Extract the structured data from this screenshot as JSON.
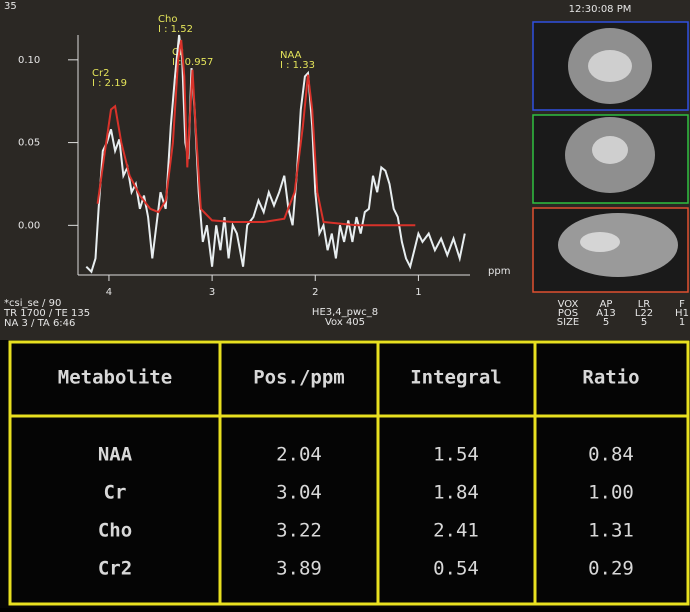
{
  "screen": {
    "clock": "12:30:08 PM",
    "corner": "35",
    "sequence": [
      "*csi_se / 90",
      "TR 1700 / TE 135",
      "NA 3 / TA 6:46"
    ],
    "voxel": [
      "HE3,4_pwc_8",
      "Vox 405"
    ],
    "geometry": [
      [
        "VOX",
        "POS",
        "SIZE"
      ],
      [
        "AP",
        "A13",
        "5"
      ],
      [
        "LR",
        "L22",
        "5"
      ],
      [
        "F",
        "H1",
        "1"
      ]
    ]
  },
  "chart_data": {
    "type": "line",
    "x_label": "ppm",
    "xlim": [
      4.3,
      0.5
    ],
    "ylim": [
      -0.03,
      0.115
    ],
    "xticks": [
      4,
      3,
      2,
      1
    ],
    "yticks": [
      {
        "value": 0.1,
        "label": "0.10"
      },
      {
        "value": 0.05,
        "label": "0.05"
      },
      {
        "value": 0,
        "label": "0.00"
      }
    ],
    "annotations": [
      {
        "label": "Cr2",
        "integral": "I : 2.19"
      },
      {
        "label": "Cho",
        "integral": "I : 1.52"
      },
      {
        "label": "Cr",
        "integral": "I : 0.957"
      },
      {
        "label": "NAA",
        "integral": "I : 1.33"
      }
    ],
    "series": [
      {
        "color": "#e8eef0",
        "x": [
          4.22,
          4.17,
          4.13,
          4.1,
          4.06,
          4.02,
          3.98,
          3.94,
          3.9,
          3.86,
          3.82,
          3.78,
          3.74,
          3.7,
          3.66,
          3.62,
          3.58,
          3.54,
          3.5,
          3.45,
          3.4,
          3.36,
          3.32,
          3.29,
          3.26,
          3.23,
          3.2,
          3.17,
          3.13,
          3.09,
          3.05,
          3.0,
          2.96,
          2.92,
          2.88,
          2.84,
          2.8,
          2.76,
          2.7,
          2.66,
          2.6,
          2.55,
          2.5,
          2.45,
          2.4,
          2.35,
          2.3,
          2.26,
          2.22,
          2.18,
          2.14,
          2.1,
          2.07,
          2.03,
          2.0,
          1.96,
          1.92,
          1.88,
          1.84,
          1.8,
          1.76,
          1.72,
          1.68,
          1.64,
          1.6,
          1.56,
          1.52,
          1.48,
          1.44,
          1.4,
          1.36,
          1.32,
          1.28,
          1.24,
          1.2,
          1.16,
          1.12,
          1.08,
          1.04,
          1.0,
          0.96,
          0.9,
          0.84,
          0.78,
          0.72,
          0.66,
          0.6,
          0.55
        ],
        "values": [
          -0.025,
          -0.028,
          -0.02,
          0.01,
          0.045,
          0.05,
          0.058,
          0.045,
          0.052,
          0.03,
          0.035,
          0.02,
          0.025,
          0.01,
          0.018,
          0.005,
          -0.02,
          0.0,
          0.02,
          0.01,
          0.06,
          0.09,
          0.115,
          0.1,
          0.05,
          0.04,
          0.095,
          0.07,
          0.02,
          -0.01,
          0.0,
          -0.025,
          0.0,
          -0.015,
          0.005,
          -0.02,
          0.0,
          -0.005,
          -0.025,
          0.0,
          0.005,
          0.015,
          0.008,
          0.02,
          0.012,
          0.02,
          0.03,
          0.01,
          0.0,
          0.03,
          0.07,
          0.09,
          0.092,
          0.06,
          0.02,
          -0.005,
          0.0,
          -0.015,
          -0.005,
          -0.02,
          0.0,
          -0.01,
          0.003,
          -0.01,
          0.005,
          -0.005,
          0.008,
          0.01,
          0.03,
          0.02,
          0.035,
          0.033,
          0.025,
          0.01,
          0.005,
          -0.01,
          -0.02,
          -0.025,
          -0.015,
          -0.005,
          -0.01,
          -0.005,
          -0.015,
          -0.008,
          -0.018,
          -0.008,
          -0.02,
          -0.005
        ]
      },
      {
        "color": "#d8322a",
        "x": [
          4.11,
          4.05,
          3.98,
          3.94,
          3.88,
          3.8,
          3.7,
          3.6,
          3.52,
          3.45,
          3.38,
          3.33,
          3.3,
          3.27,
          3.24,
          3.22,
          3.19,
          3.16,
          3.11,
          3.0,
          2.8,
          2.5,
          2.3,
          2.2,
          2.12,
          2.07,
          2.03,
          1.98,
          1.92,
          1.6,
          1.3,
          1.03
        ],
        "values": [
          0.013,
          0.04,
          0.07,
          0.072,
          0.05,
          0.03,
          0.018,
          0.01,
          0.008,
          0.015,
          0.05,
          0.1,
          0.112,
          0.09,
          0.035,
          0.06,
          0.094,
          0.06,
          0.01,
          0.003,
          0.002,
          0.002,
          0.004,
          0.02,
          0.06,
          0.091,
          0.07,
          0.02,
          0.002,
          0.0,
          0.0,
          0.0
        ]
      }
    ]
  },
  "table": {
    "header": [
      "Metabolite",
      "Pos./ppm",
      "Integral",
      "Ratio"
    ],
    "rows": [
      [
        "NAA",
        "2.04",
        "1.54",
        "0.84"
      ],
      [
        "Cr",
        "3.04",
        "1.84",
        "1.00"
      ],
      [
        "Cho",
        "3.22",
        "2.41",
        "1.31"
      ],
      [
        "Cr2",
        "3.89",
        "0.54",
        "0.29"
      ]
    ]
  }
}
